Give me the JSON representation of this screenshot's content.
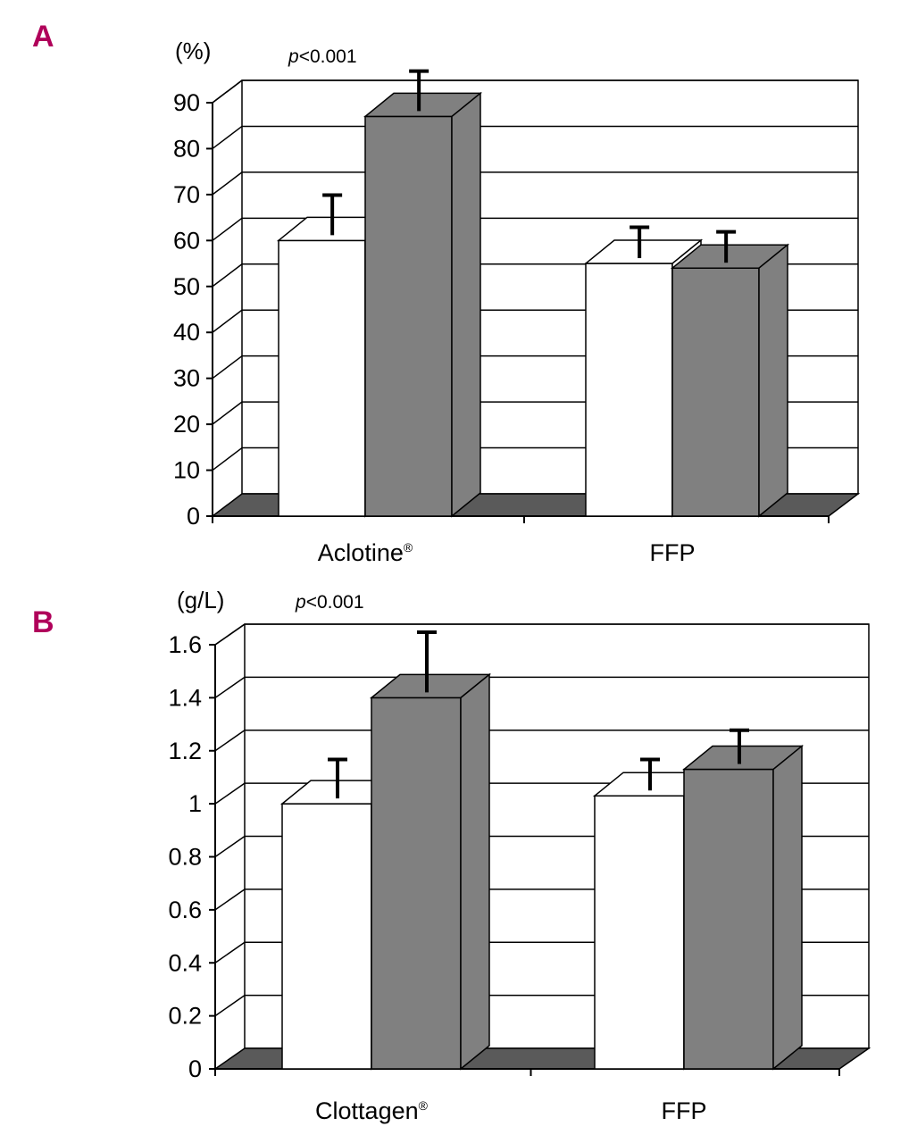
{
  "colors": {
    "before": "#ffffff",
    "after": "#808080",
    "floor": "#5a5a5a",
    "panel_letter": "#b0005a"
  },
  "chart_data": [
    {
      "type": "bar",
      "panel": "A",
      "unit": "(%)",
      "pvalue_p": "p",
      "pvalue_rest": "<0.001",
      "categories": [
        "Aclotine",
        "FFP"
      ],
      "category_marks": [
        "®",
        ""
      ],
      "ylim": [
        0,
        90
      ],
      "yticks": [
        "0",
        "10",
        "20",
        "30",
        "40",
        "50",
        "60",
        "70",
        "80",
        "90"
      ],
      "grid": true,
      "series": [
        {
          "values": [
            60,
            55
          ],
          "errors": [
            6,
            4
          ]
        },
        {
          "values": [
            87,
            54
          ],
          "errors": [
            6,
            4
          ]
        }
      ]
    },
    {
      "type": "bar",
      "panel": "B",
      "unit": "(g/L)",
      "pvalue_p": "p",
      "pvalue_rest": "<0.001",
      "categories": [
        "Clottagen",
        "FFP"
      ],
      "category_marks": [
        "®",
        ""
      ],
      "ylim": [
        0,
        1.6
      ],
      "yticks": [
        "0",
        "0.2",
        "0.4",
        "0.6",
        "0.8",
        "1",
        "1.2",
        "1.4",
        "1.6"
      ],
      "grid": true,
      "series": [
        {
          "values": [
            1.0,
            1.03
          ],
          "errors": [
            0.1,
            0.07
          ]
        },
        {
          "values": [
            1.4,
            1.13
          ],
          "errors": [
            0.18,
            0.08
          ]
        }
      ]
    }
  ]
}
